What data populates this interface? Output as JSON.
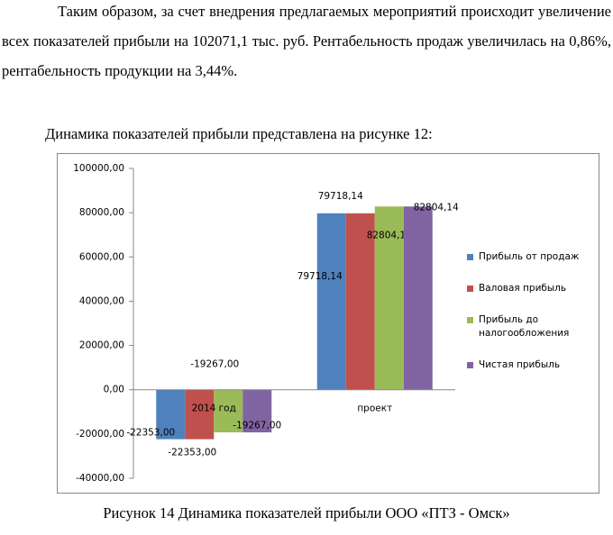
{
  "paragraphs": [
    "Таким образом, за счет внедрения предлагаемых мероприятий происходит увеличение всех показателей прибыли на 102071,1 тыс. руб. Рентабельность продаж увеличилась на 0,86%, рентабельность продукции на 3,44%.",
    "Динамика показателей прибыли представлена на рисунке 12:"
  ],
  "caption": "Рисунок 14 Динамика показателей прибыли ООО «ПТЗ - Омск»",
  "chart_data": {
    "type": "bar",
    "categories": [
      "2014 год",
      "проект"
    ],
    "series": [
      {
        "name": "Прибыль от продаж",
        "color": "#4f81bd",
        "values": [
          -22353,
          79718.14
        ],
        "value_labels": [
          "-22353,00",
          "79718,14"
        ]
      },
      {
        "name": "Валовая прибыль",
        "color": "#c0504d",
        "values": [
          -22353,
          79718.14
        ],
        "value_labels": [
          "-22353,00",
          "79718,14"
        ]
      },
      {
        "name": "Прибыль до налогообложения",
        "color": "#9bbb59",
        "values": [
          -19267,
          82804.14
        ],
        "value_labels": [
          "-19267,00",
          "82804,14"
        ]
      },
      {
        "name": "Чистая прибыль",
        "color": "#8064a2",
        "values": [
          -19267,
          82804.14
        ],
        "value_labels": [
          "-19267,00",
          "82804,14"
        ]
      }
    ],
    "ylim": [
      -40000,
      100000
    ],
    "yticks": [
      {
        "value": -40000,
        "label": "-40000,00"
      },
      {
        "value": -20000,
        "label": "-20000,00"
      },
      {
        "value": 0,
        "label": "0,00"
      },
      {
        "value": 20000,
        "label": "20000,00"
      },
      {
        "value": 40000,
        "label": "40000,00"
      },
      {
        "value": 60000,
        "label": "60000,00"
      },
      {
        "value": 80000,
        "label": "80000,00"
      },
      {
        "value": 100000,
        "label": "100000,00"
      }
    ],
    "legend": "right"
  }
}
